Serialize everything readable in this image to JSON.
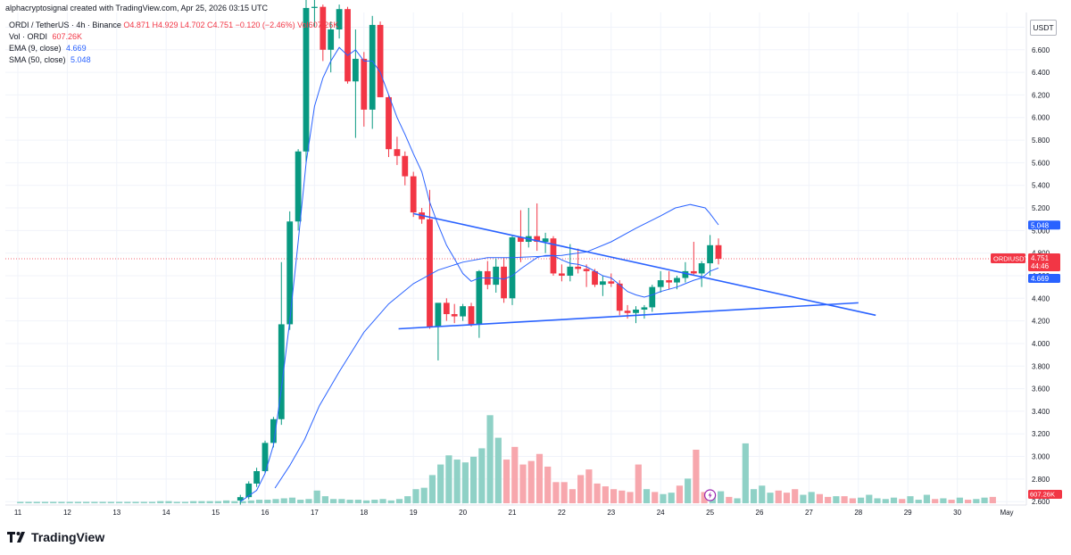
{
  "header": {
    "attribution": "alphacryptosignal created with TradingView.com, Apr 25, 2026 03:15 UTC"
  },
  "legend": {
    "symbol": "ORDI / TetherUS · 4h · Binance",
    "open": "O4.871",
    "high": "H4.929",
    "low": "L4.702",
    "close": "C4.751",
    "change": "−0.120 (−2.46%)",
    "vol_inline": "Vol607.26K",
    "vol_label": "Vol · ORDI",
    "vol_value": "607.26K",
    "ema_label": "EMA (9, close)",
    "ema_value": "4.669",
    "sma_label": "SMA (50, close)",
    "sma_value": "5.048"
  },
  "currency_button": "USDT",
  "price_labels": {
    "symbol_tag": "ORDIUSDT",
    "last_price": "4.751",
    "countdown": "44:46",
    "ema": "4.669",
    "sma": "5.048",
    "volume": "607.26K"
  },
  "brand": "TradingView",
  "colors": {
    "up": "#089981",
    "down": "#f23645",
    "vol_up": "#8fd1c6",
    "vol_down": "#f7a7ad",
    "ma": "#2962ff",
    "trendline": "#2962ff",
    "flash": "#9c27b0"
  },
  "chart_data": {
    "type": "candlestick",
    "symbol": "ORDI / TetherUS",
    "interval": "4h",
    "exchange": "Binance",
    "y_ticks": [
      "2.600",
      "2.800",
      "3.000",
      "3.200",
      "3.400",
      "3.600",
      "3.800",
      "4.000",
      "4.200",
      "4.400",
      "4.600",
      "4.800",
      "5.000",
      "5.200",
      "5.400",
      "5.600",
      "5.800",
      "6.000",
      "6.200",
      "6.400",
      "6.600",
      "6.800"
    ],
    "ylim": [
      2.57,
      6.93
    ],
    "x_ticks": [
      "11",
      "12",
      "13",
      "14",
      "15",
      "16",
      "17",
      "18",
      "19",
      "20",
      "21",
      "22",
      "23",
      "24",
      "25",
      "26",
      "27",
      "28",
      "29",
      "30",
      "May"
    ],
    "candles": [
      [
        15.5,
        2.61,
        2.66,
        2.57,
        2.64
      ],
      [
        15.67,
        2.64,
        2.78,
        2.62,
        2.76
      ],
      [
        15.83,
        2.76,
        2.9,
        2.73,
        2.87
      ],
      [
        16.0,
        2.87,
        3.14,
        2.85,
        3.12
      ],
      [
        16.17,
        3.12,
        3.35,
        3.08,
        3.33
      ],
      [
        16.33,
        3.33,
        4.72,
        3.28,
        4.17
      ],
      [
        16.5,
        4.17,
        5.17,
        4.12,
        5.08
      ],
      [
        16.67,
        5.08,
        5.72,
        5.0,
        5.7
      ],
      [
        16.83,
        5.7,
        7.1,
        5.6,
        6.97
      ],
      [
        17.0,
        6.97,
        7.1,
        6.8,
        6.98
      ],
      [
        17.17,
        6.98,
        7.0,
        6.5,
        6.6
      ],
      [
        17.33,
        6.6,
        6.85,
        6.4,
        6.78
      ],
      [
        17.5,
        6.78,
        7.0,
        6.7,
        6.96
      ],
      [
        17.67,
        6.96,
        6.98,
        6.3,
        6.32
      ],
      [
        17.83,
        6.32,
        6.78,
        5.82,
        6.52
      ],
      [
        18.0,
        6.52,
        6.58,
        5.92,
        6.07
      ],
      [
        18.17,
        6.07,
        6.9,
        5.9,
        6.82
      ],
      [
        18.33,
        6.82,
        6.85,
        6.18,
        6.18
      ],
      [
        18.5,
        6.18,
        6.2,
        5.65,
        5.72
      ],
      [
        18.67,
        5.72,
        5.83,
        5.58,
        5.66
      ],
      [
        18.83,
        5.66,
        5.7,
        5.4,
        5.48
      ],
      [
        19.0,
        5.48,
        5.52,
        5.12,
        5.16
      ],
      [
        19.17,
        5.16,
        5.2,
        5.06,
        5.1
      ],
      [
        19.33,
        5.1,
        5.36,
        4.13,
        4.15
      ],
      [
        19.5,
        4.15,
        4.35,
        3.85,
        4.36
      ],
      [
        19.67,
        4.36,
        4.4,
        4.2,
        4.26
      ],
      [
        19.83,
        4.26,
        4.35,
        4.18,
        4.24
      ],
      [
        20.0,
        4.24,
        4.35,
        4.2,
        4.33
      ],
      [
        20.17,
        4.33,
        4.36,
        4.15,
        4.17
      ],
      [
        20.33,
        4.17,
        4.65,
        4.05,
        4.64
      ],
      [
        20.5,
        4.64,
        4.73,
        4.48,
        4.52
      ],
      [
        20.67,
        4.52,
        4.75,
        4.45,
        4.68
      ],
      [
        20.83,
        4.68,
        4.76,
        4.36,
        4.4
      ],
      [
        21.0,
        4.4,
        4.95,
        4.34,
        4.94
      ],
      [
        21.17,
        4.94,
        5.18,
        4.72,
        4.9
      ],
      [
        21.33,
        4.9,
        5.2,
        4.85,
        4.95
      ],
      [
        21.5,
        4.95,
        5.24,
        4.82,
        4.9
      ],
      [
        21.67,
        4.9,
        4.98,
        4.8,
        4.93
      ],
      [
        21.83,
        4.93,
        4.95,
        4.6,
        4.62
      ],
      [
        22.0,
        4.62,
        4.7,
        4.55,
        4.6
      ],
      [
        22.17,
        4.6,
        4.88,
        4.55,
        4.68
      ],
      [
        22.33,
        4.68,
        4.84,
        4.62,
        4.66
      ],
      [
        22.5,
        4.66,
        4.7,
        4.5,
        4.64
      ],
      [
        22.67,
        4.64,
        4.66,
        4.5,
        4.52
      ],
      [
        22.83,
        4.52,
        4.6,
        4.42,
        4.55
      ],
      [
        23.0,
        4.55,
        4.62,
        4.5,
        4.53
      ],
      [
        23.17,
        4.53,
        4.56,
        4.25,
        4.29
      ],
      [
        23.33,
        4.29,
        4.34,
        4.22,
        4.27
      ],
      [
        23.5,
        4.27,
        4.33,
        4.18,
        4.3
      ],
      [
        23.67,
        4.3,
        4.34,
        4.22,
        4.32
      ],
      [
        23.83,
        4.32,
        4.52,
        4.28,
        4.5
      ],
      [
        24.0,
        4.5,
        4.64,
        4.45,
        4.56
      ],
      [
        24.17,
        4.56,
        4.64,
        4.48,
        4.54
      ],
      [
        24.33,
        4.54,
        4.6,
        4.48,
        4.58
      ],
      [
        24.5,
        4.58,
        4.72,
        4.54,
        4.64
      ],
      [
        24.67,
        4.64,
        4.9,
        4.6,
        4.62
      ],
      [
        24.83,
        4.62,
        4.73,
        4.5,
        4.71
      ],
      [
        25.0,
        4.71,
        4.96,
        4.6,
        4.87
      ],
      [
        25.17,
        4.87,
        4.93,
        4.7,
        4.75
      ]
    ],
    "volume": {
      "ylim_max": 1.9,
      "values": [
        0.02,
        0.02,
        0.02,
        0.02,
        0.02,
        0.02,
        0.02,
        0.02,
        0.02,
        0.02,
        0.02,
        0.02,
        0.02,
        0.02,
        0.02,
        0.02,
        0.02,
        0.03,
        0.03,
        0.02,
        0.02,
        0.03,
        0.03,
        0.03,
        0.03,
        0.04,
        0.03,
        0.03,
        0.04,
        0.05,
        0.05,
        0.06,
        0.07,
        0.08,
        0.05,
        0.06,
        0.18,
        0.1,
        0.06,
        0.06,
        0.05,
        0.05,
        0.04,
        0.05,
        0.06,
        0.04,
        0.06,
        0.1,
        0.2,
        0.22,
        0.4,
        0.55,
        0.68,
        0.62,
        0.58,
        0.66,
        0.78,
        1.25,
        0.93,
        0.62,
        0.8,
        0.55,
        0.6,
        0.7,
        0.52,
        0.3,
        0.3,
        0.2,
        0.4,
        0.48,
        0.28,
        0.24,
        0.2,
        0.18,
        0.16,
        0.55,
        0.2,
        0.16,
        0.13,
        0.15,
        0.25,
        0.35,
        0.76,
        0.16,
        0.12,
        0.17,
        0.09,
        0.07,
        0.85,
        0.2,
        0.25,
        0.15,
        0.18,
        0.15,
        0.2,
        0.12,
        0.16,
        0.13,
        0.09,
        0.1,
        0.1,
        0.07,
        0.08,
        0.12,
        0.07,
        0.06,
        0.08,
        0.06,
        0.1,
        0.05,
        0.12,
        0.06,
        0.07,
        0.05,
        0.08,
        0.05,
        0.06,
        0.08,
        0.09
      ],
      "up": [
        1,
        1,
        1,
        1,
        1,
        1,
        1,
        1,
        1,
        1,
        1,
        1,
        1,
        1,
        1,
        1,
        1,
        1,
        1,
        1,
        1,
        1,
        1,
        1,
        1,
        1,
        1,
        1,
        1,
        1,
        1,
        1,
        1,
        1,
        1,
        1,
        1,
        1,
        1,
        1,
        1,
        1,
        1,
        1,
        1,
        1,
        1,
        1,
        1,
        1,
        1,
        1,
        1,
        1,
        1,
        1,
        1,
        1,
        1,
        0,
        0,
        0,
        0,
        0,
        0,
        0,
        0,
        0,
        0,
        0,
        0,
        0,
        0,
        0,
        0,
        0,
        1,
        0,
        1,
        1,
        0,
        1,
        0,
        0,
        1,
        1,
        0,
        1,
        1,
        1,
        1,
        1,
        0,
        0,
        0,
        1,
        1,
        0,
        0,
        1,
        0,
        0,
        1,
        1,
        1,
        1,
        1,
        0,
        1,
        1,
        1,
        0,
        1,
        0,
        1,
        0,
        1,
        1,
        0
      ]
    },
    "ema_9": [
      [
        15.5,
        2.6
      ],
      [
        15.83,
        2.7
      ],
      [
        16.0,
        2.85
      ],
      [
        16.17,
        3.1
      ],
      [
        16.33,
        3.6
      ],
      [
        16.5,
        4.2
      ],
      [
        16.67,
        4.9
      ],
      [
        16.83,
        5.6
      ],
      [
        17.0,
        6.1
      ],
      [
        17.17,
        6.35
      ],
      [
        17.33,
        6.5
      ],
      [
        17.5,
        6.62
      ],
      [
        17.67,
        6.55
      ],
      [
        17.83,
        6.6
      ],
      [
        18.0,
        6.5
      ],
      [
        18.17,
        6.5
      ],
      [
        18.33,
        6.4
      ],
      [
        18.5,
        6.2
      ],
      [
        18.67,
        6.0
      ],
      [
        18.83,
        5.85
      ],
      [
        19.0,
        5.68
      ],
      [
        19.17,
        5.52
      ],
      [
        19.33,
        5.25
      ],
      [
        19.5,
        5.05
      ],
      [
        19.67,
        4.87
      ],
      [
        19.83,
        4.75
      ],
      [
        20.0,
        4.62
      ],
      [
        20.17,
        4.55
      ],
      [
        20.33,
        4.58
      ],
      [
        20.5,
        4.58
      ],
      [
        20.67,
        4.58
      ],
      [
        20.83,
        4.57
      ],
      [
        21.0,
        4.6
      ],
      [
        21.17,
        4.66
      ],
      [
        21.33,
        4.71
      ],
      [
        21.5,
        4.76
      ],
      [
        21.67,
        4.78
      ],
      [
        21.83,
        4.78
      ],
      [
        22.0,
        4.74
      ],
      [
        22.17,
        4.71
      ],
      [
        22.33,
        4.7
      ],
      [
        22.5,
        4.68
      ],
      [
        22.67,
        4.64
      ],
      [
        22.83,
        4.6
      ],
      [
        23.0,
        4.58
      ],
      [
        23.17,
        4.52
      ],
      [
        23.33,
        4.46
      ],
      [
        23.5,
        4.43
      ],
      [
        23.67,
        4.41
      ],
      [
        23.83,
        4.43
      ],
      [
        24.0,
        4.46
      ],
      [
        24.17,
        4.48
      ],
      [
        24.33,
        4.5
      ],
      [
        24.5,
        4.53
      ],
      [
        24.67,
        4.56
      ],
      [
        24.83,
        4.58
      ],
      [
        25.0,
        4.64
      ],
      [
        25.17,
        4.669
      ]
    ],
    "sma_50": [
      [
        16.2,
        2.72
      ],
      [
        16.5,
        2.92
      ],
      [
        16.8,
        3.15
      ],
      [
        17.1,
        3.45
      ],
      [
        17.5,
        3.75
      ],
      [
        18.0,
        4.1
      ],
      [
        18.5,
        4.35
      ],
      [
        19.0,
        4.53
      ],
      [
        19.5,
        4.65
      ],
      [
        20.0,
        4.72
      ],
      [
        20.5,
        4.76
      ],
      [
        21.0,
        4.76
      ],
      [
        21.5,
        4.77
      ],
      [
        22.0,
        4.78
      ],
      [
        22.5,
        4.81
      ],
      [
        23.0,
        4.9
      ],
      [
        23.5,
        5.02
      ],
      [
        24.0,
        5.13
      ],
      [
        24.3,
        5.2
      ],
      [
        24.6,
        5.23
      ],
      [
        24.9,
        5.2
      ],
      [
        25.0,
        5.15
      ],
      [
        25.17,
        5.05
      ]
    ],
    "trendlines": [
      {
        "from": [
          19.0,
          5.15
        ],
        "to": [
          28.35,
          4.25
        ]
      },
      {
        "from": [
          18.7,
          4.13
        ],
        "to": [
          28.0,
          4.36
        ]
      }
    ]
  }
}
